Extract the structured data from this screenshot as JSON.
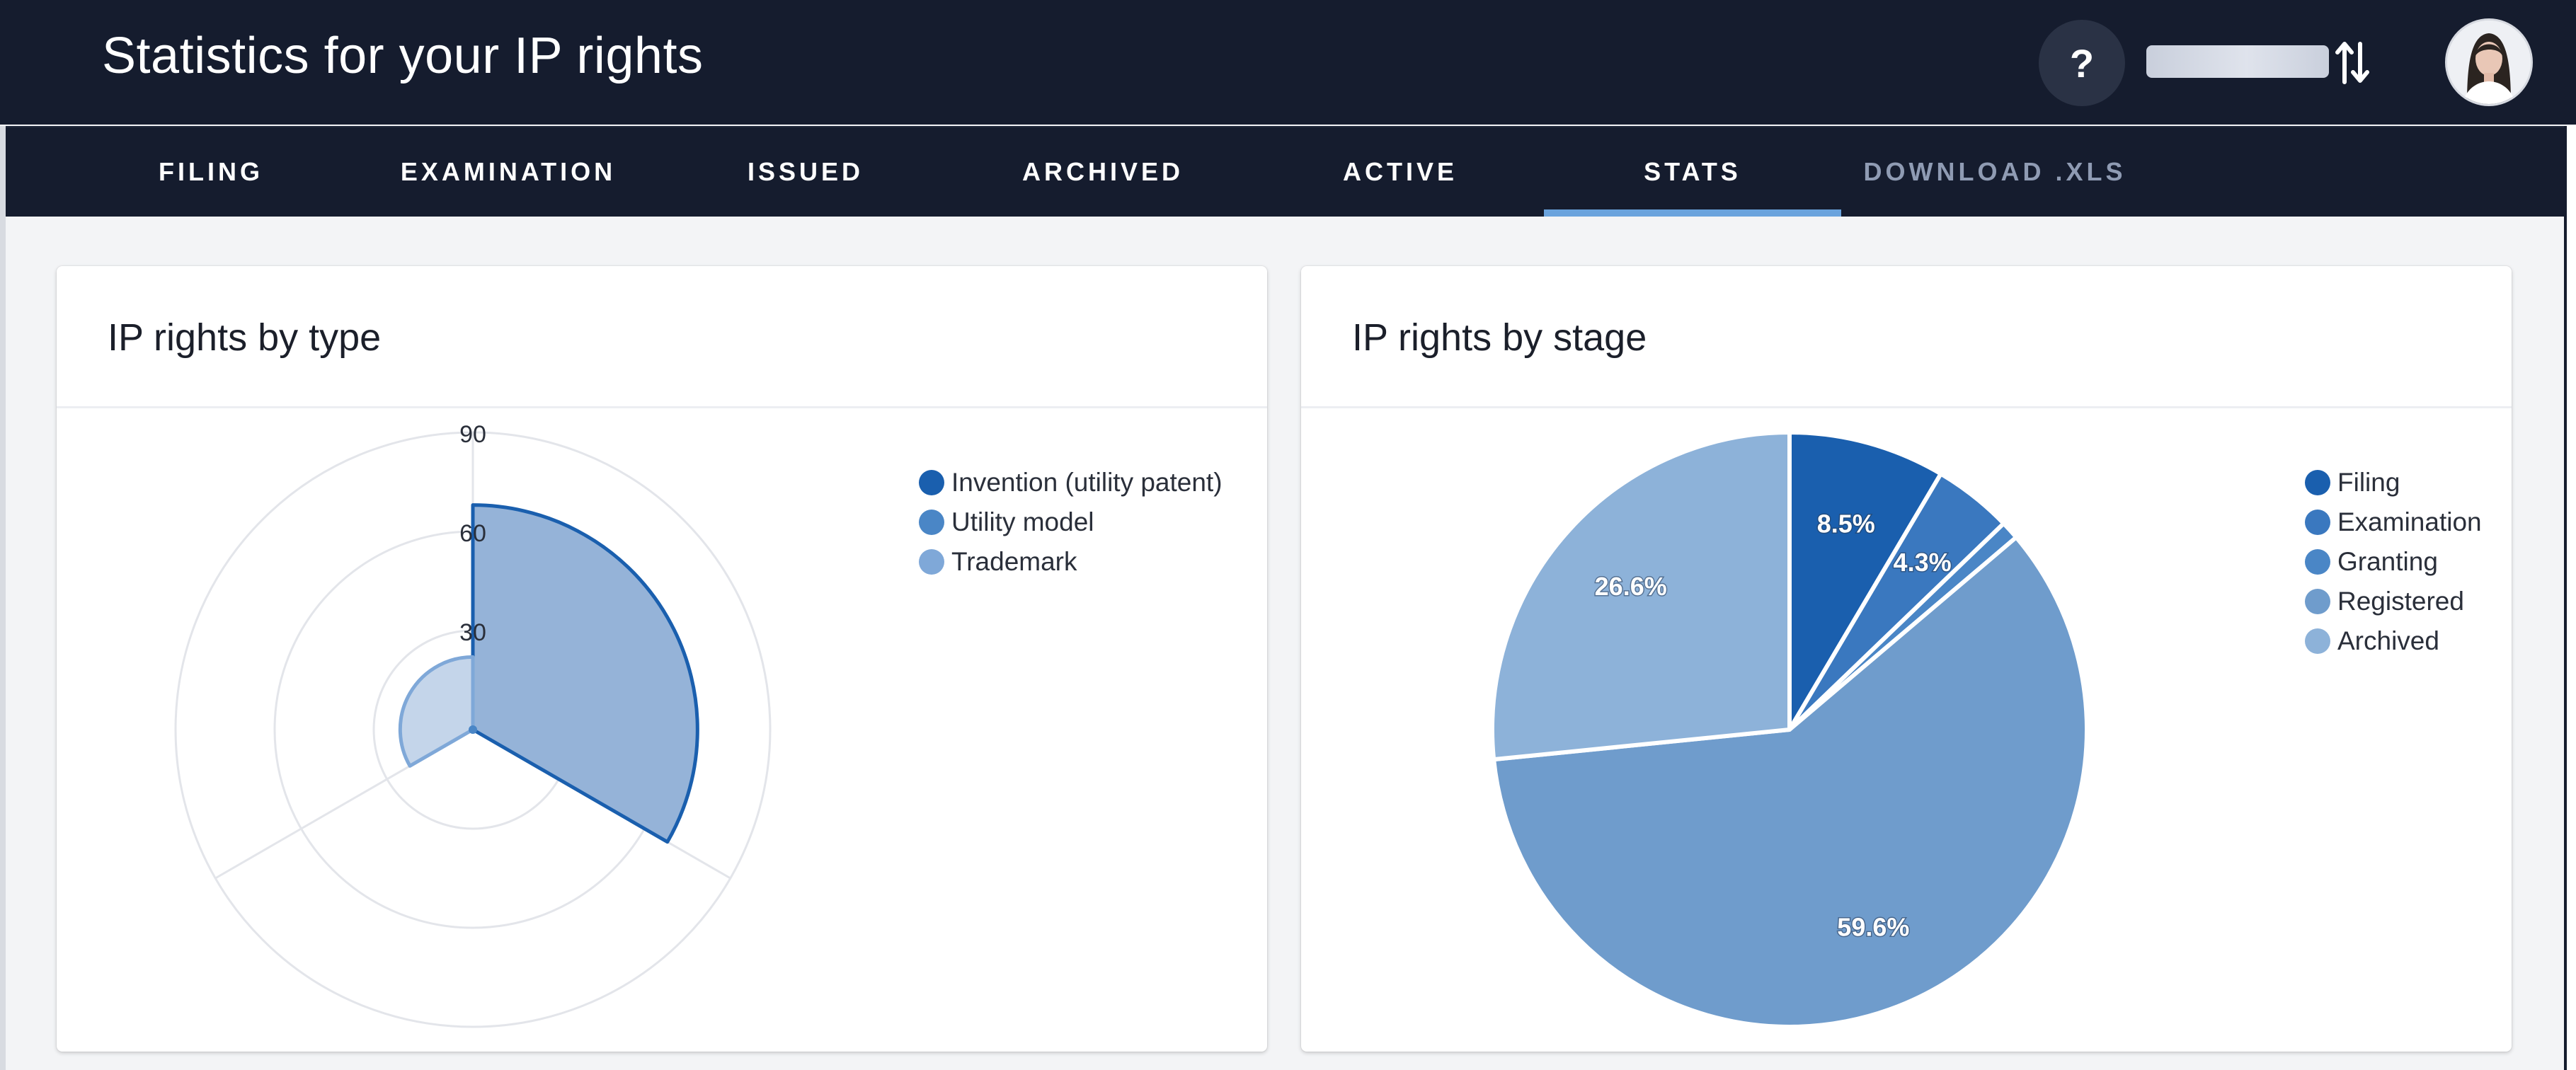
{
  "header": {
    "title": "Statistics for your IP rights",
    "help_label": "?",
    "icons": {
      "help": "question-mark-icon",
      "switch": "swap-vertical-arrows-icon",
      "avatar": "user-avatar"
    }
  },
  "tabs": [
    {
      "label": "FILING"
    },
    {
      "label": "EXAMINATION"
    },
    {
      "label": "ISSUED"
    },
    {
      "label": "ARCHIVED"
    },
    {
      "label": "ACTIVE"
    },
    {
      "label": "STATS",
      "active": true
    },
    {
      "label": "DOWNLOAD .XLS",
      "muted": true
    }
  ],
  "colors": {
    "header_bg": "#151c2e",
    "active_tab_underline": "#6aa3dd",
    "page_bg": "#f3f4f6"
  },
  "cards": {
    "type": {
      "title": "IP rights by type"
    },
    "stage": {
      "title": "IP rights by stage"
    }
  },
  "chart_data": [
    {
      "type": "polar-area",
      "title": "IP rights by type",
      "categories": [
        "Invention (utility patent)",
        "Utility model",
        "Trademark"
      ],
      "values": [
        68,
        0,
        22
      ],
      "colors": [
        "#1a5fae",
        "#4a86c6",
        "#7fa8d8"
      ],
      "radial_axis": {
        "range": [
          0,
          90
        ],
        "ticks": [
          30,
          60,
          90
        ]
      },
      "legend_position": "top-right"
    },
    {
      "type": "pie",
      "title": "IP rights by stage",
      "categories": [
        "Filing",
        "Examination",
        "Granting",
        "Registered",
        "Archived"
      ],
      "values": [
        8.5,
        4.3,
        1.0,
        59.6,
        26.6
      ],
      "labels": [
        "8.5%",
        "4.3%",
        "",
        "59.6%",
        "26.6%"
      ],
      "colors": [
        "#1a5fae",
        "#3a78bf",
        "#4a86c6",
        "#6f9ccc",
        "#8db2d9"
      ],
      "legend_position": "top-right"
    }
  ]
}
